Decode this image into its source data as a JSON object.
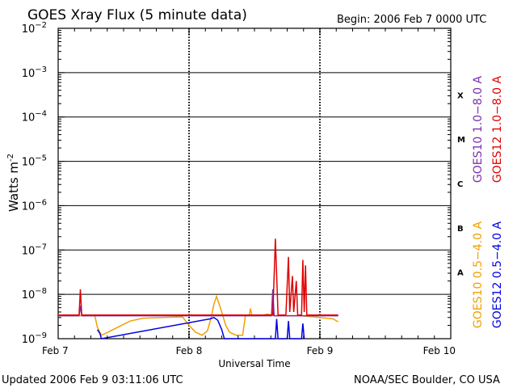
{
  "header": {
    "title": "GOES Xray Flux (5 minute data)",
    "begin": "Begin:  2006 Feb 7 0000 UTC"
  },
  "footer": {
    "updated": "Updated 2006 Feb  9 03:11:06 UTC",
    "credit": "NOAA/SEC Boulder, CO USA"
  },
  "colors": {
    "goes10_long": "#7a2fb0",
    "goes12_long": "#e00000",
    "goes10_short": "#f0a000",
    "goes12_short": "#0000e0"
  },
  "chart_data": {
    "type": "line",
    "title": "GOES Xray Flux (5 minute data)",
    "xlabel": "Universal Time",
    "ylabel": "Watts m",
    "ylabel_exp": "-2",
    "x_unit": "day since 2006 Feb 7 0000 UTC",
    "xlim": [
      0,
      3
    ],
    "x_ticks": [
      {
        "x": 0,
        "label": "Feb 7"
      },
      {
        "x": 1,
        "label": "Feb 8"
      },
      {
        "x": 2,
        "label": "Feb 9"
      },
      {
        "x": 3,
        "label": "Feb 10"
      }
    ],
    "y_scale": "log",
    "ylim": [
      1e-09,
      0.01
    ],
    "y_ticks": [
      {
        "exp": -2,
        "base": "10",
        "sup": "−2"
      },
      {
        "exp": -3,
        "base": "10",
        "sup": "−3"
      },
      {
        "exp": -4,
        "base": "10",
        "sup": "−4"
      },
      {
        "exp": -5,
        "base": "10",
        "sup": "−5"
      },
      {
        "exp": -6,
        "base": "10",
        "sup": "−6"
      },
      {
        "exp": -7,
        "base": "10",
        "sup": "−7"
      },
      {
        "exp": -8,
        "base": "10",
        "sup": "−8"
      },
      {
        "exp": -9,
        "base": "10",
        "sup": "−9"
      }
    ],
    "flare_classes": [
      {
        "label": "X",
        "exp": -3.5
      },
      {
        "label": "M",
        "exp": -4.5
      },
      {
        "label": "C",
        "exp": -5.5
      },
      {
        "label": "B",
        "exp": -6.5
      },
      {
        "label": "A",
        "exp": -7.5
      }
    ],
    "grid": true,
    "legend": "right",
    "legend_items": [
      {
        "text": "GOES10 1.0−8.0 A",
        "color": "#7a2fb0"
      },
      {
        "text": "GOES12 1.0−8.0 A",
        "color": "#e00000"
      },
      {
        "text": "GOES10 0.5−4.0 A",
        "color": "#f0a000"
      },
      {
        "text": "GOES12 0.5−4.0 A",
        "color": "#0000e0"
      }
    ],
    "series": [
      {
        "name": "GOES10 0.5−4.0 A",
        "color": "#f0a000",
        "points": [
          [
            0.0,
            3.3e-09
          ],
          [
            0.28,
            3.3e-09
          ],
          [
            0.3,
            1.8e-09
          ],
          [
            0.33,
            1.2e-09
          ],
          [
            0.36,
            1.3e-09
          ],
          [
            0.4,
            1.5e-09
          ],
          [
            0.47,
            1.9e-09
          ],
          [
            0.55,
            2.5e-09
          ],
          [
            0.65,
            2.9e-09
          ],
          [
            0.8,
            3e-09
          ],
          [
            0.95,
            3.1e-09
          ],
          [
            1.0,
            2e-09
          ],
          [
            1.05,
            1.4e-09
          ],
          [
            1.1,
            1.2e-09
          ],
          [
            1.14,
            1.5e-09
          ],
          [
            1.17,
            3e-09
          ],
          [
            1.19,
            6e-09
          ],
          [
            1.21,
            9e-09
          ],
          [
            1.23,
            6e-09
          ],
          [
            1.25,
            4e-09
          ],
          [
            1.28,
            2e-09
          ],
          [
            1.31,
            1.4e-09
          ],
          [
            1.36,
            1.2e-09
          ],
          [
            1.41,
            1.2e-09
          ],
          [
            1.43,
            3.3e-09
          ],
          [
            1.46,
            3.3e-09
          ],
          [
            1.47,
            4.8e-09
          ],
          [
            1.48,
            3.3e-09
          ],
          [
            1.55,
            3.3e-09
          ],
          [
            1.6,
            3.6e-09
          ],
          [
            1.65,
            3.3e-09
          ],
          [
            1.85,
            3.3e-09
          ],
          [
            1.9,
            3.2e-09
          ],
          [
            2.0,
            3e-09
          ],
          [
            2.1,
            2.8e-09
          ],
          [
            2.14,
            2.4e-09
          ]
        ]
      },
      {
        "name": "GOES10 1.0−8.0 A",
        "color": "#7a2fb0",
        "points": [
          [
            0.0,
            3.3e-09
          ],
          [
            0.16,
            3.3e-09
          ],
          [
            0.17,
            5.5e-09
          ],
          [
            0.18,
            3.3e-09
          ],
          [
            1.63,
            3.3e-09
          ],
          [
            1.64,
            1.3e-08
          ],
          [
            1.65,
            3.3e-09
          ],
          [
            2.14,
            3.3e-09
          ]
        ]
      },
      {
        "name": "GOES12 1.0−8.0 A",
        "color": "#e00000",
        "points": [
          [
            0.0,
            3.4e-09
          ],
          [
            0.16,
            3.4e-09
          ],
          [
            0.17,
            1.3e-08
          ],
          [
            0.18,
            3.4e-09
          ],
          [
            1.64,
            3.4e-09
          ],
          [
            1.66,
            1.8e-07
          ],
          [
            1.68,
            3.4e-09
          ],
          [
            1.74,
            3.4e-09
          ],
          [
            1.76,
            7e-08
          ],
          [
            1.77,
            4e-09
          ],
          [
            1.79,
            2.6e-08
          ],
          [
            1.8,
            4e-09
          ],
          [
            1.82,
            2e-08
          ],
          [
            1.83,
            3.4e-09
          ],
          [
            1.86,
            3.4e-09
          ],
          [
            1.87,
            6e-08
          ],
          [
            1.88,
            4e-09
          ],
          [
            1.89,
            4.5e-08
          ],
          [
            1.9,
            3.4e-09
          ],
          [
            2.14,
            3.4e-09
          ]
        ]
      },
      {
        "name": "GOES12 0.5−4.0 A",
        "color": "#0000e0",
        "points": [
          [
            0.3,
            1.6e-09
          ],
          [
            0.32,
            1.3e-09
          ],
          [
            0.33,
            1e-09
          ],
          [
            1.16,
            2.8e-09
          ],
          [
            1.19,
            3e-09
          ],
          [
            1.22,
            2.6e-09
          ],
          [
            1.25,
            1.6e-09
          ],
          [
            1.27,
            1e-09
          ],
          [
            1.66,
            1e-09
          ],
          [
            1.67,
            2.8e-09
          ],
          [
            1.68,
            1e-09
          ],
          [
            1.75,
            1e-09
          ],
          [
            1.76,
            2.5e-09
          ],
          [
            1.77,
            1e-09
          ],
          [
            1.86,
            1e-09
          ],
          [
            1.87,
            2.2e-09
          ],
          [
            1.88,
            1e-09
          ]
        ]
      }
    ]
  }
}
